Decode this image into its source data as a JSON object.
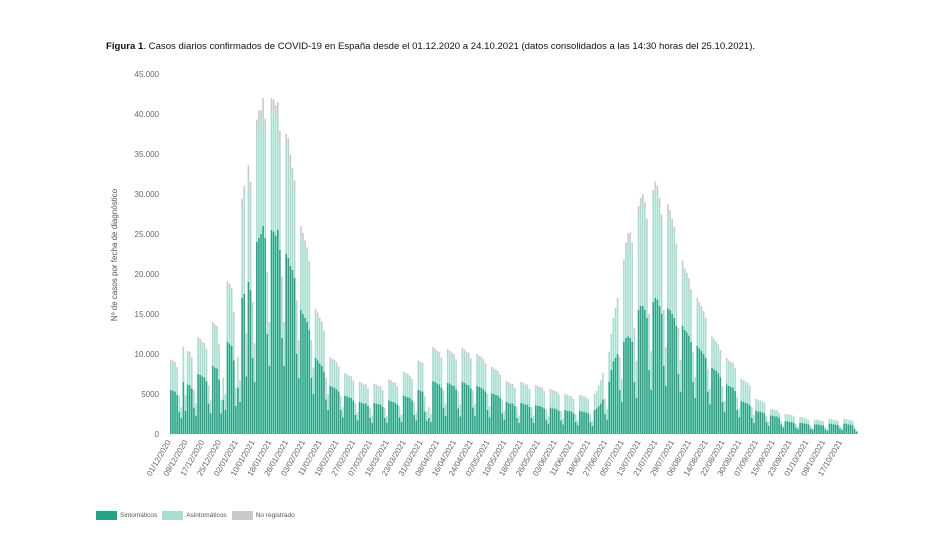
{
  "title": {
    "label": "Figura 1",
    "text": ". Casos diarios confirmados de COVID-19 en España desde el 01.12.2020 a 24.10.2021 (datos consolidados a las 14:30 horas del 25.10.2021)."
  },
  "colors": {
    "sintomaticos": "#27a386",
    "asintomaticos": "#a9ddd0",
    "no_registrado": "#c9c9c9"
  },
  "chart_data": {
    "type": "bar",
    "stacked": true,
    "date_range": [
      "01/12/2020",
      "24/10/2021"
    ],
    "ylabel": "Nº de casos por fecha de diagnóstico",
    "ylim": [
      0,
      45000
    ],
    "y_ticks": [
      {
        "value": 45000,
        "label": "45.000"
      },
      {
        "value": 40000,
        "label": "40.000"
      },
      {
        "value": 35000,
        "label": "35.000"
      },
      {
        "value": 30000,
        "label": "30.000"
      },
      {
        "value": 25000,
        "label": "25.000"
      },
      {
        "value": 20000,
        "label": "20.000"
      },
      {
        "value": 15000,
        "label": "15.000"
      },
      {
        "value": 10000,
        "label": "10.000"
      },
      {
        "value": 5000,
        "label": "5000"
      },
      {
        "value": 0,
        "label": "0"
      }
    ],
    "x_tick_labels": [
      "01/12/2020",
      "09/12/2020",
      "17/12/2020",
      "25/12/2020",
      "02/01/2021",
      "10/01/2021",
      "18/01/2021",
      "26/01/2021",
      "03/02/2021",
      "11/02/2021",
      "19/02/2021",
      "27/02/2021",
      "07/03/2021",
      "15/03/2021",
      "23/03/2021",
      "31/03/2021",
      "08/04/2021",
      "16/04/2021",
      "24/04/2021",
      "02/05/2021",
      "10/05/2021",
      "18/05/2021",
      "26/05/2021",
      "03/06/2021",
      "11/06/2021",
      "19/06/2021",
      "27/06/2021",
      "05/07/2021",
      "13/07/2021",
      "21/07/2021",
      "29/07/2021",
      "06/08/2021",
      "14/08/2021",
      "22/08/2021",
      "30/08/2021",
      "07/09/2021",
      "15/09/2021",
      "23/09/2021",
      "01/10/2021",
      "09/10/2021",
      "17/10/2021"
    ],
    "grid": false,
    "legend_position": "bottom-left",
    "series": [
      {
        "name": "Sintomáticos",
        "values": [
          5500,
          5400,
          5300,
          4900,
          2800,
          2000,
          6500,
          2900,
          6200,
          6100,
          5700,
          3300,
          2300,
          7500,
          7400,
          7200,
          7100,
          6600,
          3800,
          2600,
          8500,
          8300,
          8200,
          6800,
          2600,
          4300,
          3000,
          11500,
          11300,
          11000,
          9200,
          3500,
          5800,
          4000,
          17000,
          17500,
          7200,
          19000,
          18000,
          9500,
          6500,
          24000,
          24500,
          25000,
          26000,
          24500,
          12500,
          8500,
          25500,
          25300,
          24800,
          25500,
          23000,
          12000,
          8500,
          22500,
          22000,
          21000,
          20500,
          19500,
          10000,
          7000,
          15500,
          15000,
          14500,
          14000,
          13000,
          7000,
          5000,
          9500,
          9200,
          8800,
          8500,
          7800,
          4300,
          3000,
          6000,
          5900,
          5800,
          5600,
          5300,
          3000,
          2100,
          4800,
          4700,
          4600,
          4500,
          4200,
          2400,
          1700,
          4000,
          3900,
          3800,
          3800,
          3500,
          2000,
          1400,
          3900,
          3800,
          3700,
          3700,
          3400,
          2000,
          1400,
          4200,
          4100,
          4000,
          3900,
          3700,
          2100,
          1500,
          4800,
          4700,
          4600,
          4500,
          4200,
          2400,
          1700,
          5500,
          5400,
          5300,
          2800,
          1700,
          2000,
          1500,
          6600,
          6500,
          6300,
          6200,
          5800,
          3300,
          2300,
          6400,
          6300,
          6100,
          6000,
          5600,
          3200,
          2200,
          6500,
          6400,
          6200,
          6100,
          5700,
          3300,
          2300,
          6000,
          5900,
          5800,
          5600,
          5300,
          3000,
          2100,
          5100,
          5000,
          4900,
          4800,
          4500,
          2600,
          1800,
          4000,
          3900,
          3800,
          3800,
          3500,
          2000,
          1400,
          3900,
          3800,
          3700,
          3700,
          3400,
          2000,
          1400,
          3600,
          3500,
          3500,
          3400,
          3200,
          1800,
          1300,
          3300,
          3200,
          3200,
          3100,
          2900,
          1700,
          1200,
          3000,
          2900,
          2900,
          2800,
          2600,
          1500,
          1100,
          2900,
          2800,
          2800,
          2700,
          2600,
          1500,
          1000,
          3000,
          3200,
          3500,
          3800,
          4300,
          2500,
          1800,
          6500,
          8000,
          9100,
          9500,
          10000,
          5500,
          4000,
          11500,
          12000,
          12200,
          12000,
          11500,
          6500,
          4500,
          15500,
          16000,
          16000,
          15500,
          14500,
          8000,
          5500,
          16500,
          17000,
          16800,
          16000,
          15000,
          8500,
          6000,
          15700,
          15500,
          15000,
          14500,
          13500,
          7500,
          5300,
          13500,
          13000,
          12700,
          12300,
          11500,
          6500,
          4500,
          11000,
          10700,
          10400,
          10000,
          9500,
          5300,
          3700,
          8300,
          8100,
          7900,
          7600,
          7100,
          4000,
          2800,
          6200,
          6000,
          5900,
          5800,
          5400,
          3000,
          2100,
          4100,
          4000,
          3900,
          3800,
          3600,
          2000,
          1400,
          2900,
          2800,
          2800,
          2700,
          2600,
          1500,
          1000,
          2300,
          2300,
          2200,
          2200,
          2000,
          1200,
          800,
          1600,
          1600,
          1500,
          1500,
          1400,
          800,
          600,
          1400,
          1400,
          1300,
          1300,
          1200,
          700,
          500,
          1200,
          1200,
          1200,
          1100,
          1100,
          600,
          400,
          1300,
          1300,
          1200,
          1200,
          1100,
          700,
          500,
          1300,
          1300,
          1200,
          1200,
          1100,
          600,
          300
        ]
      },
      {
        "name": "Asintomáticos",
        "values": [
          3400,
          3400,
          3300,
          3100,
          1800,
          1200,
          4000,
          1800,
          3800,
          3800,
          3500,
          2000,
          1400,
          4200,
          4100,
          4000,
          3900,
          3700,
          2100,
          1500,
          5000,
          4900,
          4800,
          4000,
          1500,
          2500,
          1800,
          7000,
          6900,
          6700,
          5600,
          2100,
          3500,
          2500,
          11500,
          12500,
          5000,
          13500,
          12500,
          6500,
          4500,
          14000,
          14500,
          14000,
          14500,
          13500,
          7000,
          5000,
          15000,
          15000,
          14800,
          14500,
          13500,
          7000,
          5000,
          13500,
          13500,
          12500,
          11500,
          11000,
          6000,
          4200,
          9500,
          9200,
          8800,
          8500,
          7800,
          4300,
          3000,
          5500,
          5400,
          5200,
          5000,
          4600,
          2500,
          1800,
          3200,
          3100,
          3100,
          3000,
          2800,
          1600,
          1100,
          2500,
          2500,
          2400,
          2400,
          2200,
          1300,
          900,
          2200,
          2200,
          2100,
          2100,
          1900,
          1100,
          800,
          2100,
          2100,
          2000,
          2000,
          1800,
          1100,
          700,
          2300,
          2300,
          2200,
          2200,
          2000,
          1200,
          800,
          2700,
          2600,
          2600,
          2500,
          2400,
          1400,
          900,
          3300,
          3200,
          3200,
          1700,
          1000,
          1200,
          900,
          3800,
          3700,
          3600,
          3600,
          3300,
          1900,
          1300,
          3700,
          3600,
          3600,
          3500,
          3300,
          1900,
          1300,
          3800,
          3700,
          3600,
          3600,
          3300,
          1900,
          1300,
          3500,
          3400,
          3400,
          3300,
          3100,
          1800,
          1200,
          2900,
          2800,
          2800,
          2700,
          2600,
          1500,
          1000,
          2300,
          2300,
          2200,
          2200,
          2000,
          1200,
          800,
          2300,
          2300,
          2200,
          2200,
          2000,
          1200,
          800,
          2200,
          2200,
          2100,
          2100,
          1900,
          1100,
          800,
          2000,
          2000,
          1900,
          1900,
          1800,
          1000,
          700,
          1800,
          1800,
          1700,
          1700,
          1600,
          900,
          600,
          1800,
          1800,
          1700,
          1700,
          1600,
          900,
          600,
          1800,
          2000,
          2300,
          2600,
          3000,
          1700,
          1200,
          3500,
          4200,
          5000,
          5800,
          6500,
          3800,
          2700,
          9500,
          11000,
          12000,
          12200,
          11500,
          6200,
          4300,
          12000,
          12500,
          13000,
          12500,
          11500,
          6500,
          4500,
          13000,
          13600,
          13200,
          12500,
          11500,
          6500,
          4500,
          12000,
          11500,
          11000,
          10500,
          9500,
          5300,
          3700,
          7500,
          7000,
          6800,
          6500,
          6000,
          3400,
          2400,
          5500,
          5300,
          5100,
          4900,
          4600,
          2600,
          1800,
          3600,
          3500,
          3400,
          3300,
          3100,
          1800,
          1200,
          3000,
          2900,
          2800,
          2800,
          2600,
          1500,
          1000,
          2600,
          2500,
          2500,
          2400,
          2300,
          1300,
          900,
          1400,
          1400,
          1300,
          1300,
          1200,
          700,
          500,
          700,
          700,
          700,
          700,
          600,
          400,
          200,
          800,
          800,
          800,
          800,
          700,
          400,
          300,
          600,
          600,
          600,
          600,
          500,
          300,
          200,
          550,
          540,
          530,
          520,
          480,
          280,
          190,
          550,
          540,
          530,
          520,
          480,
          280,
          190,
          550,
          540,
          530,
          520,
          480,
          250,
          100
        ]
      },
      {
        "name": "No registrado",
        "values": [
          390,
          380,
          380,
          350,
          200,
          140,
          400,
          180,
          380,
          380,
          350,
          200,
          140,
          400,
          390,
          380,
          380,
          350,
          200,
          140,
          500,
          490,
          480,
          400,
          150,
          250,
          180,
          600,
          590,
          580,
          480,
          180,
          300,
          210,
          900,
          1000,
          400,
          1100,
          1000,
          500,
          350,
          1300,
          1400,
          1500,
          1500,
          1400,
          700,
          500,
          1500,
          1500,
          1500,
          1500,
          1400,
          700,
          500,
          1500,
          1500,
          1400,
          1300,
          1200,
          700,
          500,
          1000,
          950,
          900,
          850,
          800,
          450,
          300,
          600,
          580,
          560,
          540,
          500,
          280,
          200,
          400,
          390,
          380,
          380,
          350,
          200,
          140,
          300,
          290,
          290,
          280,
          260,
          150,
          110,
          300,
          290,
          290,
          280,
          260,
          150,
          110,
          300,
          290,
          290,
          280,
          260,
          150,
          110,
          300,
          290,
          290,
          280,
          260,
          150,
          110,
          300,
          290,
          290,
          280,
          260,
          150,
          110,
          400,
          390,
          380,
          200,
          120,
          150,
          110,
          500,
          490,
          480,
          470,
          440,
          250,
          180,
          500,
          490,
          480,
          470,
          440,
          250,
          180,
          500,
          490,
          480,
          470,
          440,
          250,
          180,
          500,
          490,
          480,
          470,
          440,
          250,
          180,
          400,
          390,
          380,
          380,
          350,
          200,
          140,
          300,
          290,
          290,
          280,
          260,
          150,
          110,
          300,
          290,
          290,
          280,
          260,
          150,
          110,
          300,
          290,
          290,
          280,
          260,
          150,
          110,
          300,
          290,
          290,
          280,
          260,
          150,
          110,
          200,
          200,
          190,
          190,
          180,
          100,
          70,
          200,
          200,
          190,
          190,
          180,
          100,
          70,
          200,
          200,
          250,
          300,
          350,
          200,
          150,
          300,
          350,
          400,
          450,
          500,
          300,
          200,
          800,
          900,
          900,
          1000,
          900,
          500,
          350,
          1000,
          1000,
          1000,
          1000,
          900,
          500,
          350,
          1000,
          1000,
          1000,
          1000,
          900,
          500,
          350,
          1000,
          1000,
          900,
          900,
          800,
          450,
          300,
          700,
          700,
          650,
          650,
          600,
          350,
          250,
          500,
          480,
          460,
          450,
          420,
          250,
          180,
          300,
          290,
          290,
          280,
          260,
          150,
          110,
          300,
          290,
          290,
          280,
          260,
          150,
          110,
          200,
          200,
          190,
          190,
          180,
          100,
          70,
          100,
          100,
          100,
          90,
          90,
          50,
          40,
          100,
          100,
          100,
          90,
          90,
          50,
          40,
          100,
          100,
          100,
          90,
          90,
          50,
          40,
          100,
          100,
          100,
          90,
          90,
          50,
          40,
          50,
          50,
          50,
          50,
          40,
          30,
          20,
          50,
          50,
          50,
          50,
          40,
          30,
          20,
          50,
          50,
          50,
          50,
          40,
          20,
          10
        ]
      }
    ]
  },
  "legend": {
    "items": [
      "Sintomáticos",
      "Asintomáticos",
      "No registrado"
    ]
  }
}
